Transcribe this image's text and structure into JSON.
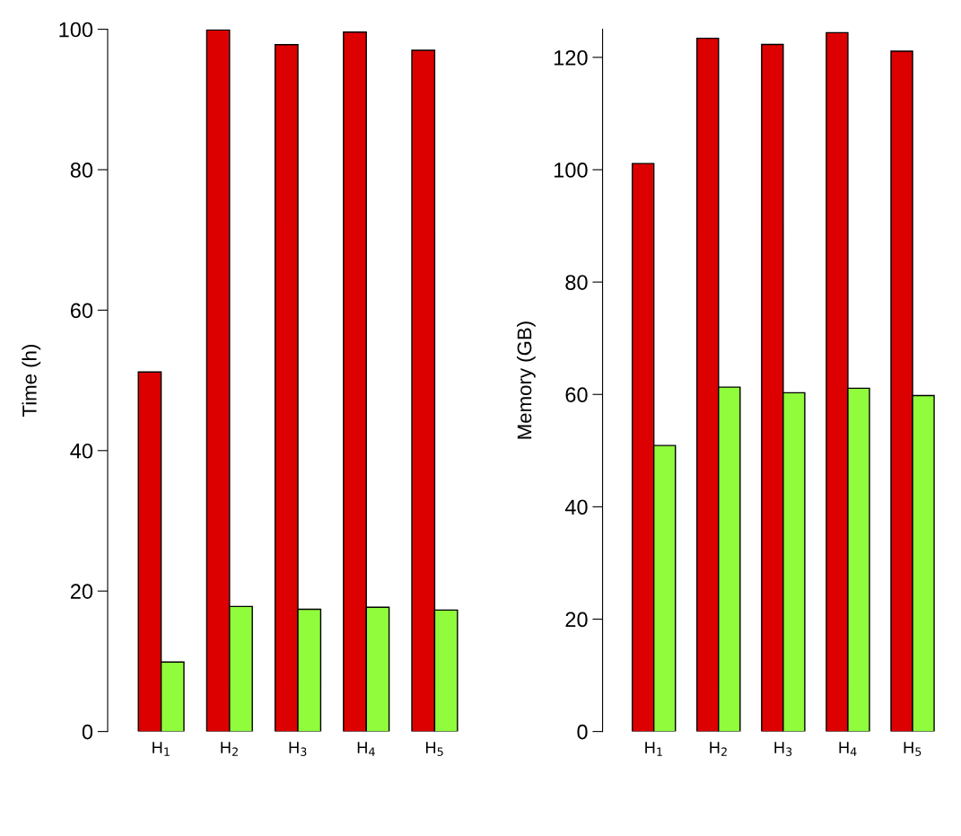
{
  "chart_data": [
    {
      "type": "bar",
      "ylabel": "Time (h)",
      "categories": [
        "H$_{1}$",
        "H$_{2}$",
        "H$_{3}$",
        "H$_{4}$",
        "H$_{5}$"
      ],
      "ylim": [
        0,
        100
      ],
      "yticks": [
        0,
        20,
        40,
        60,
        80,
        100
      ],
      "series": [
        {
          "color": "#dd0000",
          "values": [
            51.2,
            99.9,
            97.8,
            99.6,
            97.0
          ]
        },
        {
          "color": "#90fc3c",
          "values": [
            9.9,
            17.8,
            17.4,
            17.7,
            17.3
          ]
        }
      ]
    },
    {
      "type": "bar",
      "ylabel": "Memory (GB)",
      "categories": [
        "H$_{1}$",
        "H$_{2}$",
        "H$_{3}$",
        "H$_{4}$",
        "H$_{5}$"
      ],
      "ylim": [
        0,
        125
      ],
      "yticks": [
        0,
        20,
        40,
        60,
        80,
        100,
        120
      ],
      "series": [
        {
          "color": "#dd0000",
          "values": [
            101.1,
            123.4,
            122.3,
            124.4,
            121.1
          ]
        },
        {
          "color": "#90fc3c",
          "values": [
            50.9,
            61.3,
            60.3,
            61.1,
            59.8
          ]
        }
      ]
    }
  ]
}
